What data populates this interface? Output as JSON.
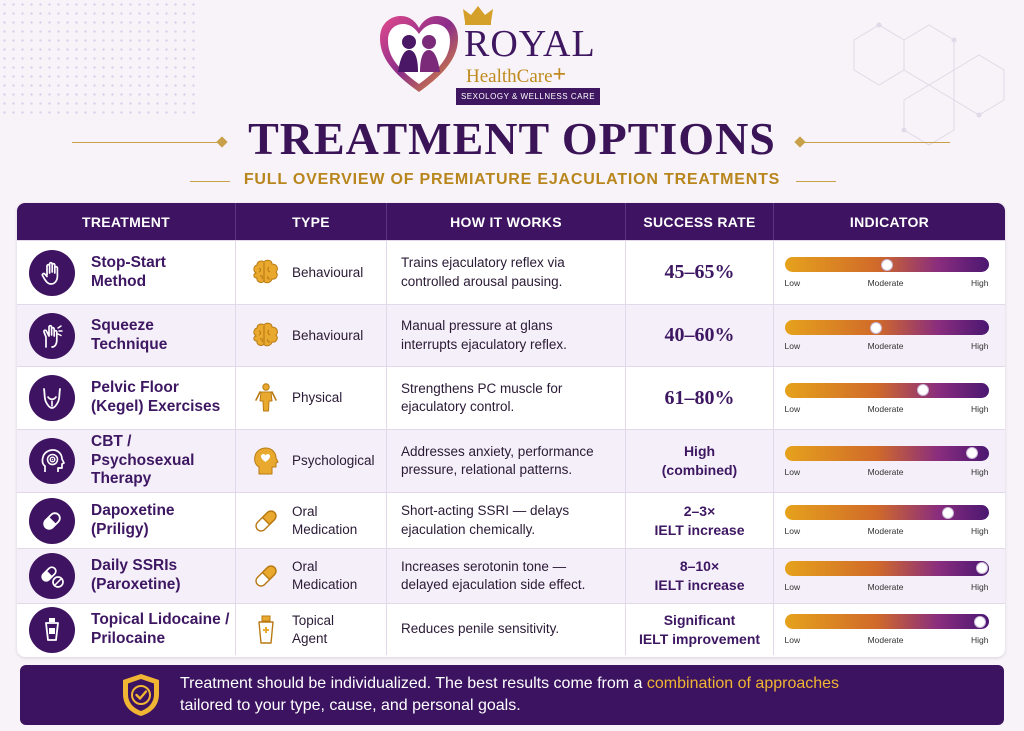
{
  "logo": {
    "brand_line1": "ROYAL",
    "brand_line2": "HealthCare",
    "tagline": "SEXOLOGY & WELLNESS CARE"
  },
  "title": "TREATMENT OPTIONS",
  "subtitle": "FULL OVERVIEW OF PREMIATURE EJACULATION TREATMENTS",
  "headers": [
    "TREATMENT",
    "TYPE",
    "HOW IT WORKS",
    "SUCCESS RATE",
    "INDICATOR"
  ],
  "scale_labels": {
    "low": "Low",
    "moderate": "Moderate",
    "high": "High"
  },
  "rows": [
    {
      "name": "Stop-Start\nMethod",
      "icon": "hand-icon",
      "type": "Behavioural",
      "type_icon": "brain-icon",
      "how": "Trains ejaculatory reflex via\ncontrolled arousal pausing.",
      "rate": "45–65%",
      "level": 0.5
    },
    {
      "name": "Squeeze\nTechnique",
      "icon": "squeeze-hand-icon",
      "type": "Behavioural",
      "type_icon": "brain-icon",
      "how": "Manual pressure at glans\ninterrupts ejaculatory reflex.",
      "rate": "40–60%",
      "level": 0.45
    },
    {
      "name": "Pelvic Floor\n(Kegel) Exercises",
      "icon": "pelvis-icon",
      "type": "Physical",
      "type_icon": "body-icon",
      "how": "Strengthens PC muscle for\nejaculatory control.",
      "rate": "61–80%",
      "level": 0.68
    },
    {
      "name": "CBT /\nPsychosexual\nTherapy",
      "icon": "mind-target-icon",
      "type": "Psychological",
      "type_icon": "head-heart-icon",
      "how": "Addresses anxiety, performance\npressure, relational patterns.",
      "rate": "High\n(combined)",
      "level": 0.92
    },
    {
      "name": "Dapoxetine\n(Priligy)",
      "icon": "capsule-icon",
      "type": "Oral\nMedication",
      "type_icon": "pill-icon",
      "how": "Short-acting SSRI — delays\nejaculation chemically.",
      "rate": "2–3×\nIELT increase",
      "level": 0.8
    },
    {
      "name": "Daily SSRIs\n(Paroxetine)",
      "icon": "pills-icon",
      "type": "Oral\nMedication",
      "type_icon": "pill-icon",
      "how": "Increases serotonin tone —\ndelayed ejaculation side effect.",
      "rate": "8–10×\nIELT increase",
      "level": 0.97
    },
    {
      "name": "Topical Lidocaine /\nPrilocaine",
      "icon": "tube-icon",
      "type": "Topical\nAgent",
      "type_icon": "cream-tube-icon",
      "how": "Reduces penile sensitivity.",
      "rate": "Significant\nIELT improvement",
      "level": 0.96
    }
  ],
  "footer": {
    "text_before": "Treatment should be individualized. The best results come from a ",
    "highlight": "combination of approaches",
    "text_after": "tailored to your type, cause, and personal goals."
  },
  "colors": {
    "primary": "#3e1362",
    "gold": "#c08a1e",
    "highlight": "#f0b532"
  }
}
